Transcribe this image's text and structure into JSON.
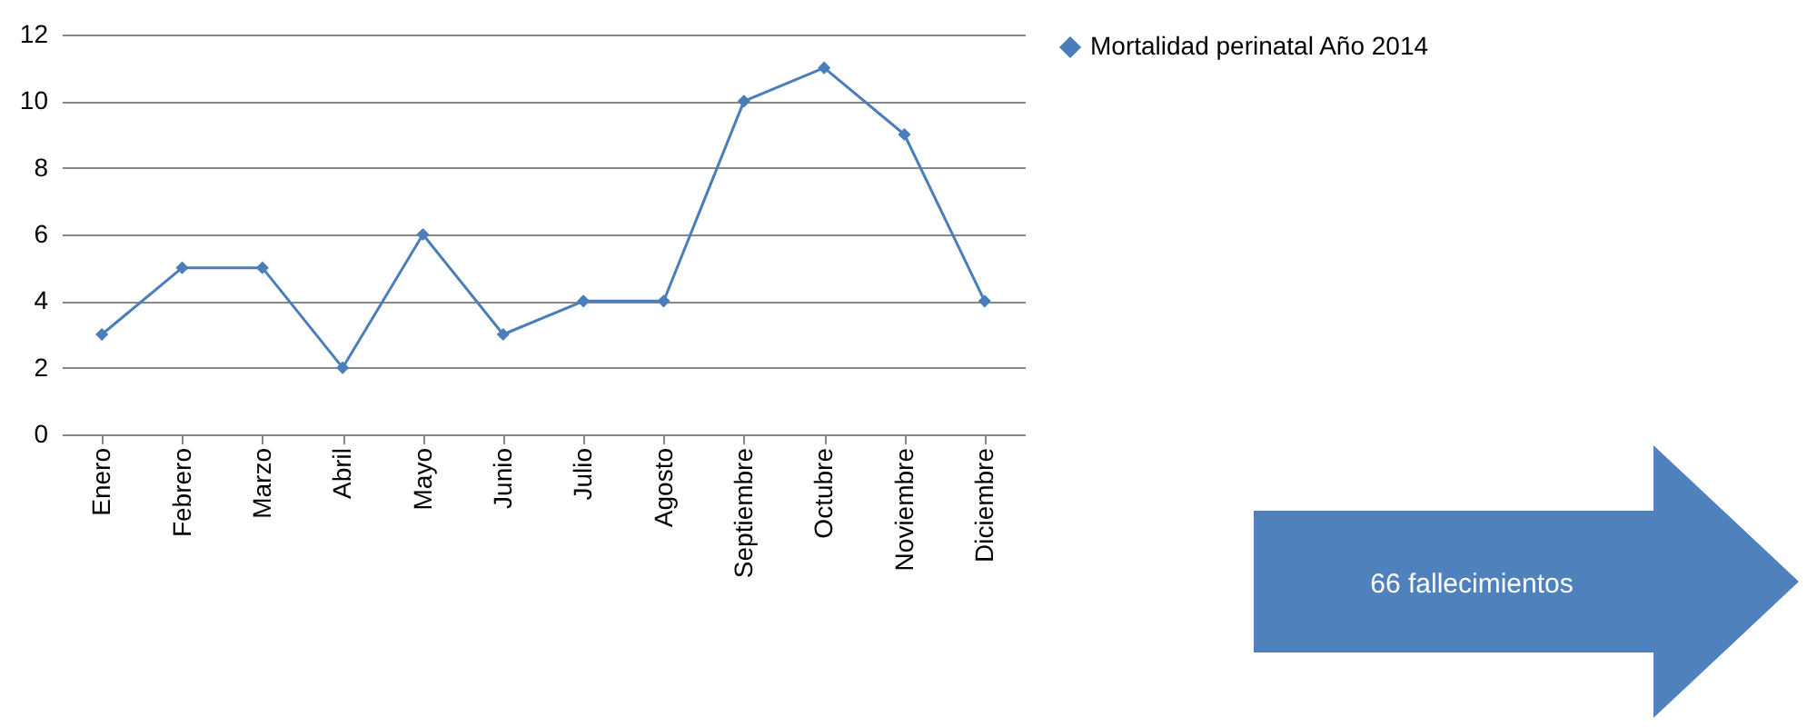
{
  "chart_data": {
    "type": "line",
    "categories": [
      "Enero",
      "Febrero",
      "Marzo",
      "Abril",
      "Mayo",
      "Junio",
      "Julio",
      "Agosto",
      "Septiembre",
      "Octubre",
      "Noviembre",
      "Diciembre"
    ],
    "series": [
      {
        "name": "Mortalidad perinatal Año 2014",
        "color": "#4a7ebb",
        "values": [
          3,
          5,
          5,
          2,
          6,
          3,
          4,
          4,
          10,
          11,
          9,
          4
        ]
      }
    ],
    "ylim": [
      0,
      12
    ],
    "yticks": [
      0,
      2,
      4,
      6,
      8,
      10,
      12
    ],
    "grid": "y",
    "legend": "right",
    "marker": "diamond",
    "annotations": [
      "66 fallecimientos"
    ]
  }
}
